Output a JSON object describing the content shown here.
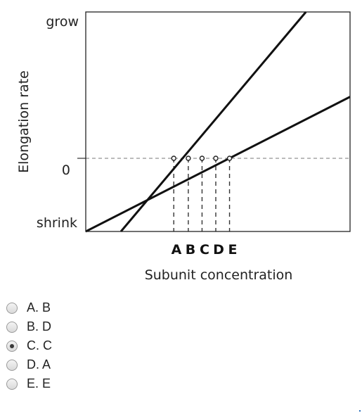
{
  "chart_data": {
    "type": "line",
    "xlabel": "Subunit concentration",
    "ylabel": "Elongation rate",
    "y_ticks": [
      "grow",
      "0",
      "shrink"
    ],
    "x_categories": [
      "A",
      "B",
      "C",
      "D",
      "E"
    ],
    "xlim": [
      0,
      10
    ],
    "ylim": [
      -1,
      2
    ],
    "series": [
      {
        "x": [
          1.33,
          8.33
        ],
        "y": [
          -1,
          2
        ],
        "color": "#111111"
      },
      {
        "x": [
          0,
          10
        ],
        "y": [
          -1,
          0.84
        ],
        "color": "#111111"
      }
    ],
    "zero_line": {
      "y": 0,
      "style": "dashed",
      "color": "#777777"
    },
    "markers": [
      {
        "label": "A",
        "x": 3.33
      },
      {
        "label": "B",
        "x": 3.88
      },
      {
        "label": "C",
        "x": 4.4
      },
      {
        "label": "D",
        "x": 4.92
      },
      {
        "label": "E",
        "x": 5.44
      }
    ]
  },
  "question": {
    "options": [
      {
        "letter": "A.",
        "value": "B",
        "selected": false
      },
      {
        "letter": "B.",
        "value": "D",
        "selected": false
      },
      {
        "letter": "C.",
        "value": "C",
        "selected": true
      },
      {
        "letter": "D.",
        "value": "A",
        "selected": false
      },
      {
        "letter": "E.",
        "value": "E",
        "selected": false
      }
    ]
  }
}
